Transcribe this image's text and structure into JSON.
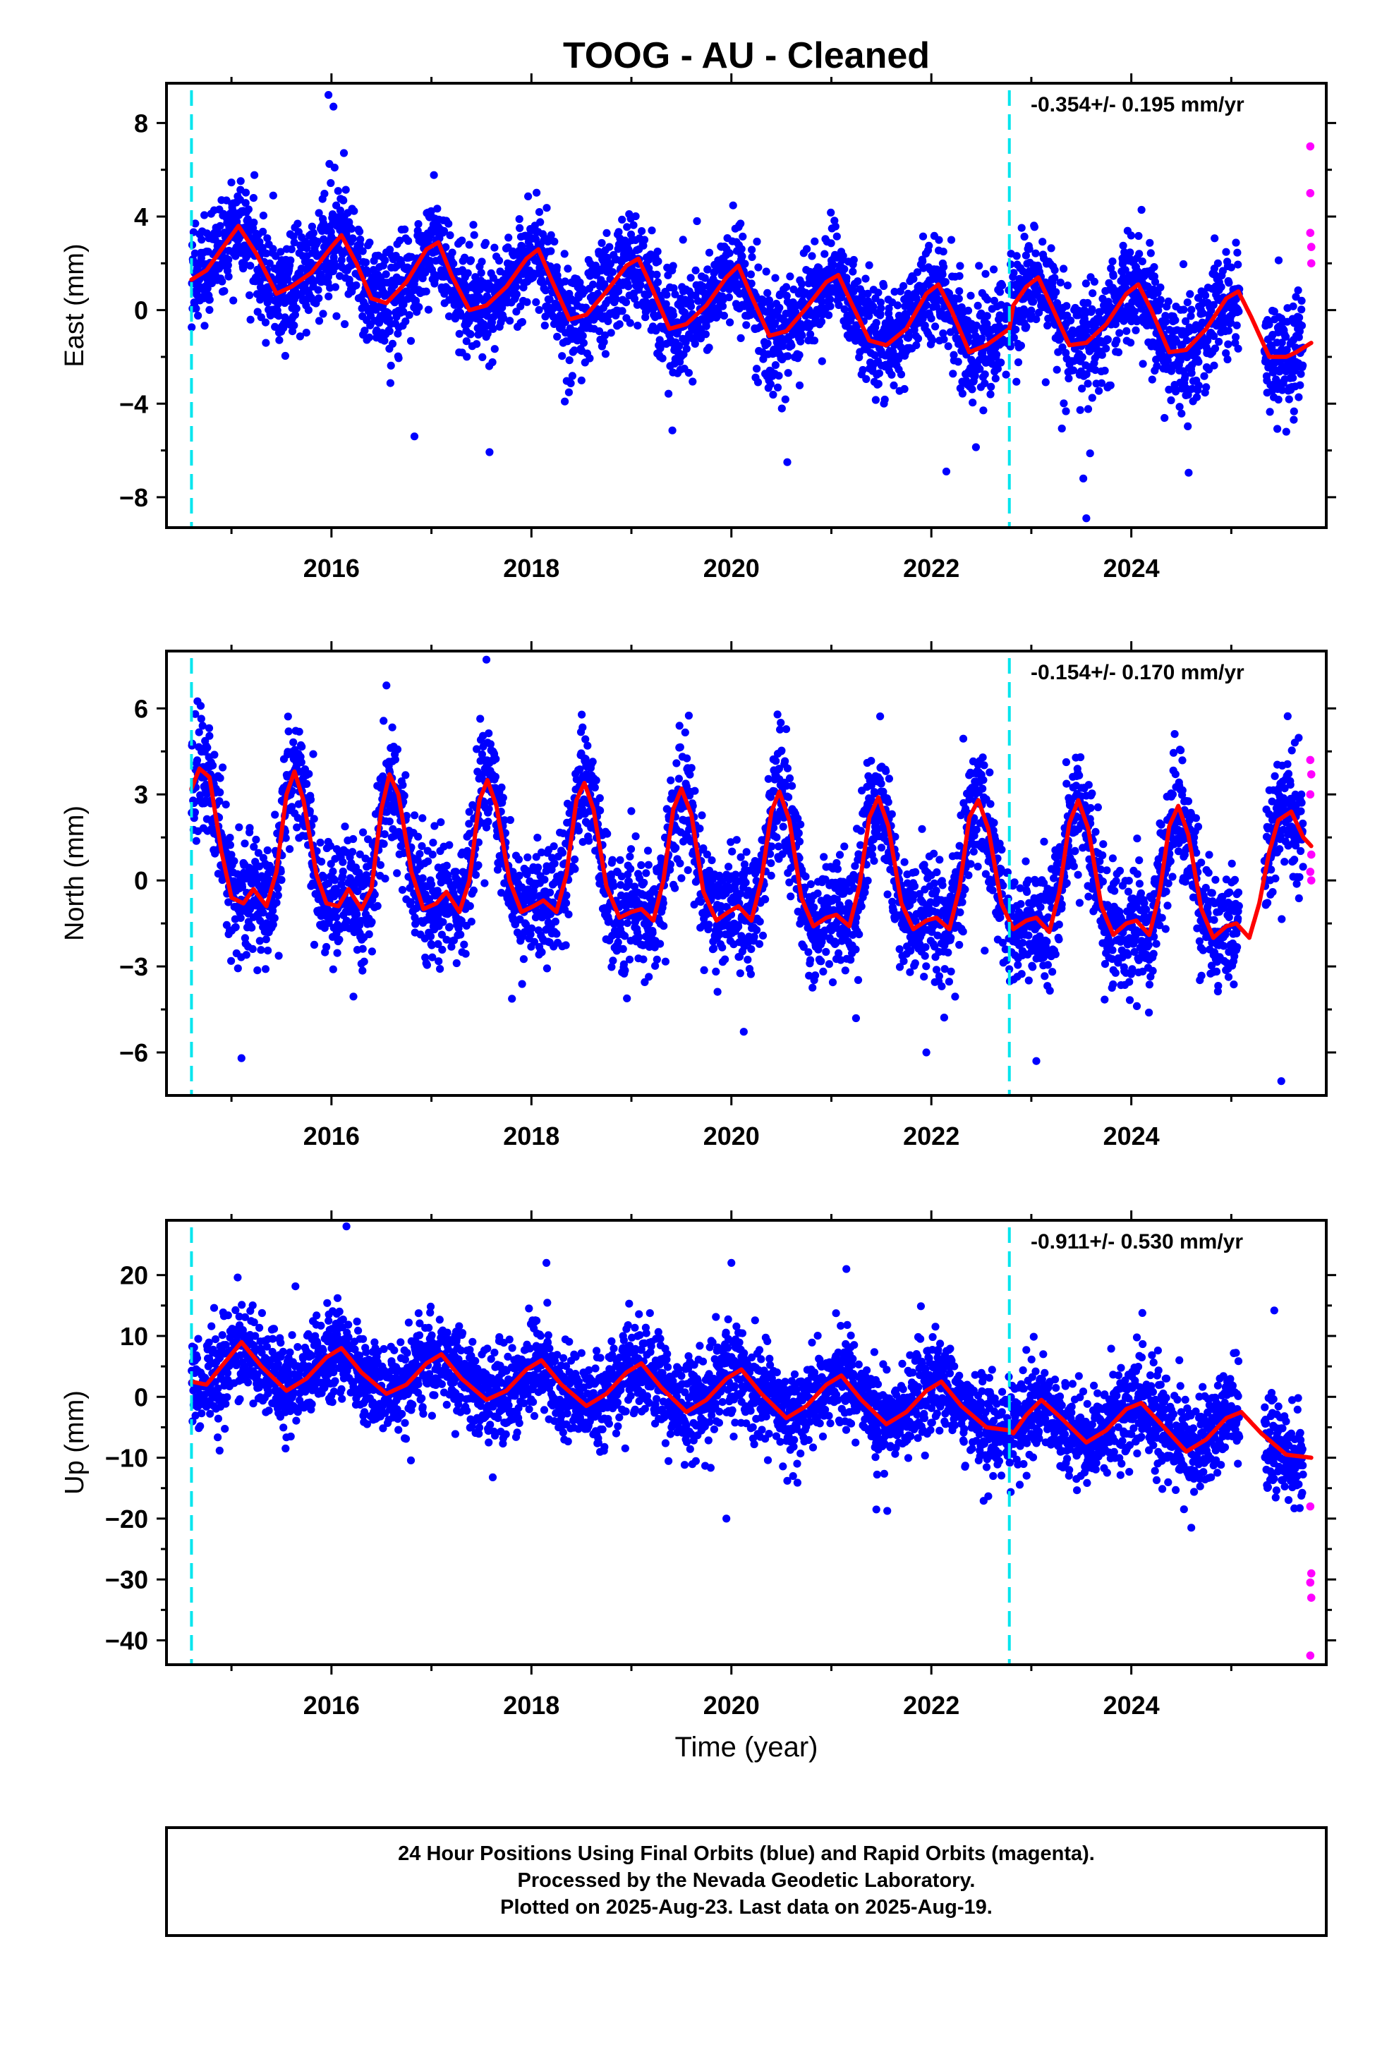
{
  "title": "TOOG  - AU - Cleaned",
  "colors": {
    "final_orbits": "#0000ff",
    "rapid_orbits": "#ff00ff",
    "model": "#ff0000",
    "equipment_change": "#00e5ee",
    "frame": "#000000"
  },
  "footer": {
    "line1": "24 Hour Positions Using Final Orbits (blue) and Rapid Orbits (magenta).",
    "line2": "Processed by the Nevada Geodetic Laboratory.",
    "line3": "Plotted on 2025-Aug-23. Last data on 2025-Aug-19."
  },
  "chart_data": [
    {
      "type": "scatter",
      "component": "East",
      "ylabel": "East (mm)",
      "xlabel": "",
      "rate_label": "-0.354+/- 0.195 mm/yr",
      "xlim": [
        2014.35,
        2025.95
      ],
      "ylim": [
        -9.3,
        9.7
      ],
      "yticks": [
        -8,
        -4,
        0,
        4,
        8
      ],
      "yticklabels": [
        "−8",
        "−4",
        "0",
        "4",
        "8"
      ],
      "xticks": [
        2016,
        2018,
        2020,
        2022,
        2024
      ],
      "xticklabels": [
        "2016",
        "2018",
        "2020",
        "2022",
        "2024"
      ],
      "breaks": [
        2014.6,
        2022.78
      ],
      "model_knots": [
        [
          2014.6,
          1.3
        ],
        [
          2014.75,
          1.7
        ],
        [
          2014.9,
          2.6
        ],
        [
          2015.07,
          3.6
        ],
        [
          2015.25,
          2.4
        ],
        [
          2015.45,
          0.7
        ],
        [
          2015.6,
          1.0
        ],
        [
          2015.8,
          1.6
        ],
        [
          2016.0,
          2.7
        ],
        [
          2016.1,
          3.2
        ],
        [
          2016.25,
          2.0
        ],
        [
          2016.4,
          0.5
        ],
        [
          2016.55,
          0.3
        ],
        [
          2016.75,
          1.2
        ],
        [
          2016.95,
          2.6
        ],
        [
          2017.07,
          2.9
        ],
        [
          2017.2,
          1.5
        ],
        [
          2017.38,
          0.0
        ],
        [
          2017.55,
          0.2
        ],
        [
          2017.75,
          1.0
        ],
        [
          2017.95,
          2.2
        ],
        [
          2018.07,
          2.6
        ],
        [
          2018.2,
          1.3
        ],
        [
          2018.38,
          -0.4
        ],
        [
          2018.55,
          -0.2
        ],
        [
          2018.75,
          0.8
        ],
        [
          2018.95,
          1.9
        ],
        [
          2019.07,
          2.2
        ],
        [
          2019.2,
          1.0
        ],
        [
          2019.38,
          -0.8
        ],
        [
          2019.55,
          -0.6
        ],
        [
          2019.75,
          0.2
        ],
        [
          2019.95,
          1.4
        ],
        [
          2020.07,
          1.9
        ],
        [
          2020.2,
          0.6
        ],
        [
          2020.38,
          -1.1
        ],
        [
          2020.55,
          -0.9
        ],
        [
          2020.75,
          0.1
        ],
        [
          2020.95,
          1.2
        ],
        [
          2021.07,
          1.5
        ],
        [
          2021.2,
          0.3
        ],
        [
          2021.38,
          -1.3
        ],
        [
          2021.55,
          -1.5
        ],
        [
          2021.75,
          -0.8
        ],
        [
          2021.95,
          0.7
        ],
        [
          2022.07,
          1.1
        ],
        [
          2022.2,
          0.0
        ],
        [
          2022.38,
          -1.8
        ],
        [
          2022.55,
          -1.5
        ],
        [
          2022.78,
          -0.8
        ],
        [
          2022.82,
          0.2
        ],
        [
          2022.95,
          1.0
        ],
        [
          2023.07,
          1.4
        ],
        [
          2023.2,
          0.2
        ],
        [
          2023.38,
          -1.5
        ],
        [
          2023.55,
          -1.4
        ],
        [
          2023.75,
          -0.6
        ],
        [
          2023.95,
          0.7
        ],
        [
          2024.07,
          1.1
        ],
        [
          2024.2,
          0.0
        ],
        [
          2024.38,
          -1.8
        ],
        [
          2024.55,
          -1.7
        ],
        [
          2024.75,
          -0.8
        ],
        [
          2024.95,
          0.5
        ],
        [
          2025.07,
          0.8
        ],
        [
          2025.2,
          -0.3
        ],
        [
          2025.38,
          -2.0
        ],
        [
          2025.55,
          -2.0
        ],
        [
          2025.65,
          -1.8
        ],
        [
          2025.8,
          -1.4
        ]
      ],
      "rapid_points": [
        [
          2025.79,
          7.0
        ],
        [
          2025.79,
          5.0
        ],
        [
          2025.79,
          3.3
        ],
        [
          2025.8,
          2.7
        ],
        [
          2025.8,
          2.0
        ]
      ],
      "outlier_points": [
        [
          2023.55,
          -8.9
        ],
        [
          2023.52,
          -7.2
        ],
        [
          2016.83,
          -5.4
        ],
        [
          2022.15,
          -6.9
        ],
        [
          2025.55,
          -5.2
        ],
        [
          2015.97,
          9.2
        ],
        [
          2016.02,
          8.7
        ]
      ],
      "scatter_std": 1.1,
      "annual_amp": 1.6
    },
    {
      "type": "scatter",
      "component": "North",
      "ylabel": "North (mm)",
      "xlabel": "",
      "rate_label": "-0.154+/- 0.170 mm/yr",
      "xlim": [
        2014.35,
        2025.95
      ],
      "ylim": [
        -7.5,
        8.0
      ],
      "yticks": [
        -6,
        -3,
        0,
        3,
        6
      ],
      "yticklabels": [
        "−6",
        "−3",
        "0",
        "3",
        "6"
      ],
      "xticks": [
        2016,
        2018,
        2020,
        2022,
        2024
      ],
      "xticklabels": [
        "2016",
        "2018",
        "2020",
        "2022",
        "2024"
      ],
      "breaks": [
        2014.6,
        2022.78
      ],
      "model_knots": [
        [
          2014.6,
          3.2
        ],
        [
          2014.68,
          3.9
        ],
        [
          2014.78,
          3.6
        ],
        [
          2014.9,
          1.0
        ],
        [
          2015.0,
          -0.6
        ],
        [
          2015.12,
          -0.8
        ],
        [
          2015.22,
          -0.3
        ],
        [
          2015.35,
          -0.9
        ],
        [
          2015.45,
          0.3
        ],
        [
          2015.55,
          3.0
        ],
        [
          2015.63,
          3.8
        ],
        [
          2015.72,
          2.8
        ],
        [
          2015.85,
          0.2
        ],
        [
          2015.95,
          -0.8
        ],
        [
          2016.07,
          -0.9
        ],
        [
          2016.17,
          -0.3
        ],
        [
          2016.3,
          -1.0
        ],
        [
          2016.4,
          -0.3
        ],
        [
          2016.5,
          2.5
        ],
        [
          2016.58,
          3.7
        ],
        [
          2016.67,
          3.0
        ],
        [
          2016.8,
          0.3
        ],
        [
          2016.92,
          -1.0
        ],
        [
          2017.05,
          -0.8
        ],
        [
          2017.15,
          -0.4
        ],
        [
          2017.28,
          -1.1
        ],
        [
          2017.38,
          0.0
        ],
        [
          2017.48,
          2.8
        ],
        [
          2017.56,
          3.5
        ],
        [
          2017.65,
          2.6
        ],
        [
          2017.78,
          0.0
        ],
        [
          2017.9,
          -1.1
        ],
        [
          2018.02,
          -0.9
        ],
        [
          2018.12,
          -0.7
        ],
        [
          2018.25,
          -1.1
        ],
        [
          2018.35,
          0.2
        ],
        [
          2018.45,
          2.8
        ],
        [
          2018.53,
          3.4
        ],
        [
          2018.62,
          2.5
        ],
        [
          2018.75,
          -0.2
        ],
        [
          2018.88,
          -1.3
        ],
        [
          2019.0,
          -1.1
        ],
        [
          2019.1,
          -1.0
        ],
        [
          2019.22,
          -1.4
        ],
        [
          2019.32,
          0.0
        ],
        [
          2019.42,
          2.5
        ],
        [
          2019.5,
          3.2
        ],
        [
          2019.6,
          2.3
        ],
        [
          2019.72,
          -0.4
        ],
        [
          2019.85,
          -1.4
        ],
        [
          2019.97,
          -1.1
        ],
        [
          2020.07,
          -0.9
        ],
        [
          2020.2,
          -1.4
        ],
        [
          2020.3,
          0.0
        ],
        [
          2020.4,
          2.4
        ],
        [
          2020.48,
          3.1
        ],
        [
          2020.58,
          2.1
        ],
        [
          2020.7,
          -0.6
        ],
        [
          2020.82,
          -1.6
        ],
        [
          2020.95,
          -1.3
        ],
        [
          2021.05,
          -1.2
        ],
        [
          2021.18,
          -1.6
        ],
        [
          2021.28,
          -0.2
        ],
        [
          2021.38,
          2.2
        ],
        [
          2021.47,
          2.9
        ],
        [
          2021.57,
          1.9
        ],
        [
          2021.7,
          -0.8
        ],
        [
          2021.82,
          -1.7
        ],
        [
          2021.95,
          -1.4
        ],
        [
          2022.05,
          -1.3
        ],
        [
          2022.18,
          -1.7
        ],
        [
          2022.28,
          -0.3
        ],
        [
          2022.38,
          2.2
        ],
        [
          2022.47,
          2.8
        ],
        [
          2022.57,
          1.8
        ],
        [
          2022.7,
          -0.8
        ],
        [
          2022.82,
          -1.7
        ],
        [
          2022.95,
          -1.4
        ],
        [
          2023.05,
          -1.3
        ],
        [
          2023.18,
          -1.8
        ],
        [
          2023.28,
          -0.4
        ],
        [
          2023.38,
          2.0
        ],
        [
          2023.47,
          2.8
        ],
        [
          2023.57,
          1.8
        ],
        [
          2023.7,
          -0.9
        ],
        [
          2023.82,
          -1.9
        ],
        [
          2023.95,
          -1.5
        ],
        [
          2024.05,
          -1.4
        ],
        [
          2024.18,
          -1.9
        ],
        [
          2024.28,
          -0.5
        ],
        [
          2024.38,
          1.9
        ],
        [
          2024.47,
          2.6
        ],
        [
          2024.57,
          1.6
        ],
        [
          2024.7,
          -1.0
        ],
        [
          2024.82,
          -2.0
        ],
        [
          2024.95,
          -1.6
        ],
        [
          2025.05,
          -1.5
        ],
        [
          2025.18,
          -2.0
        ],
        [
          2025.28,
          -0.8
        ],
        [
          2025.38,
          1.0
        ],
        [
          2025.47,
          2.1
        ],
        [
          2025.6,
          2.4
        ],
        [
          2025.72,
          1.5
        ],
        [
          2025.8,
          1.2
        ]
      ],
      "rapid_points": [
        [
          2025.79,
          4.2
        ],
        [
          2025.8,
          3.7
        ],
        [
          2025.79,
          3.0
        ],
        [
          2025.8,
          0.9
        ],
        [
          2025.79,
          0.3
        ],
        [
          2025.8,
          0.0
        ]
      ],
      "outlier_points": [
        [
          2017.55,
          7.7
        ],
        [
          2016.55,
          6.8
        ],
        [
          2025.5,
          -7.0
        ],
        [
          2023.05,
          -6.3
        ],
        [
          2015.1,
          -6.2
        ],
        [
          2021.95,
          -6.0
        ]
      ],
      "scatter_std": 1.0,
      "annual_amp": 0.0
    },
    {
      "type": "scatter",
      "component": "Up",
      "ylabel": "Up (mm)",
      "xlabel": "Time (year)",
      "rate_label": "-0.911+/- 0.530 mm/yr",
      "xlim": [
        2014.35,
        2025.95
      ],
      "ylim": [
        -44,
        29
      ],
      "yticks": [
        -40,
        -30,
        -20,
        -10,
        0,
        10,
        20
      ],
      "yticklabels": [
        "−40",
        "−30",
        "−20",
        "−10",
        "0",
        "10",
        "20"
      ],
      "xticks": [
        2016,
        2018,
        2020,
        2022,
        2024
      ],
      "xticklabels": [
        "2016",
        "2018",
        "2020",
        "2022",
        "2024"
      ],
      "breaks": [
        2014.6,
        2022.78
      ],
      "model_knots": [
        [
          2014.6,
          2.5
        ],
        [
          2014.75,
          2.0
        ],
        [
          2014.95,
          6.0
        ],
        [
          2015.1,
          9.0
        ],
        [
          2015.3,
          5.0
        ],
        [
          2015.55,
          1.0
        ],
        [
          2015.75,
          3.0
        ],
        [
          2015.95,
          6.5
        ],
        [
          2016.1,
          8.0
        ],
        [
          2016.3,
          4.0
        ],
        [
          2016.55,
          0.5
        ],
        [
          2016.75,
          2.0
        ],
        [
          2016.95,
          5.5
        ],
        [
          2017.1,
          7.0
        ],
        [
          2017.3,
          3.0
        ],
        [
          2017.55,
          -0.5
        ],
        [
          2017.75,
          1.0
        ],
        [
          2017.95,
          4.5
        ],
        [
          2018.1,
          6.0
        ],
        [
          2018.3,
          2.0
        ],
        [
          2018.55,
          -1.5
        ],
        [
          2018.75,
          0.5
        ],
        [
          2018.95,
          4.0
        ],
        [
          2019.1,
          5.5
        ],
        [
          2019.3,
          1.5
        ],
        [
          2019.55,
          -2.5
        ],
        [
          2019.75,
          -0.5
        ],
        [
          2019.95,
          3.0
        ],
        [
          2020.1,
          4.5
        ],
        [
          2020.3,
          0.5
        ],
        [
          2020.55,
          -3.5
        ],
        [
          2020.75,
          -1.5
        ],
        [
          2020.95,
          2.0
        ],
        [
          2021.1,
          3.5
        ],
        [
          2021.3,
          -0.5
        ],
        [
          2021.55,
          -4.5
        ],
        [
          2021.75,
          -2.5
        ],
        [
          2021.95,
          1.0
        ],
        [
          2022.1,
          2.5
        ],
        [
          2022.3,
          -1.5
        ],
        [
          2022.55,
          -5.0
        ],
        [
          2022.78,
          -5.5
        ],
        [
          2022.82,
          -6.0
        ],
        [
          2022.95,
          -3.0
        ],
        [
          2023.1,
          -0.5
        ],
        [
          2023.3,
          -3.5
        ],
        [
          2023.55,
          -7.5
        ],
        [
          2023.75,
          -5.5
        ],
        [
          2023.95,
          -2.0
        ],
        [
          2024.1,
          -1.0
        ],
        [
          2024.3,
          -4.5
        ],
        [
          2024.55,
          -9.0
        ],
        [
          2024.75,
          -7.0
        ],
        [
          2024.95,
          -3.5
        ],
        [
          2025.1,
          -2.5
        ],
        [
          2025.3,
          -6.0
        ],
        [
          2025.55,
          -9.5
        ],
        [
          2025.8,
          -10.0
        ]
      ],
      "rapid_points": [
        [
          2025.79,
          -18.0
        ],
        [
          2025.8,
          -29.0
        ],
        [
          2025.79,
          -30.5
        ],
        [
          2025.8,
          -33.0
        ],
        [
          2025.79,
          -42.5
        ]
      ],
      "outlier_points": [
        [
          2016.15,
          28.0
        ],
        [
          2018.15,
          22.0
        ],
        [
          2020.0,
          22.0
        ],
        [
          2019.95,
          -20.0
        ],
        [
          2021.15,
          21.0
        ],
        [
          2024.6,
          -21.5
        ],
        [
          2021.45,
          -18.5
        ]
      ],
      "scatter_std": 3.8,
      "annual_amp": 0.0
    }
  ]
}
